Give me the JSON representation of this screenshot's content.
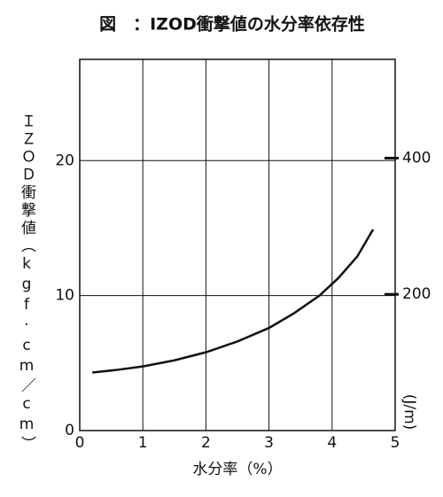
{
  "chart_data": {
    "type": "line",
    "title": "図　：IZOD衝撃値の水分率依存性",
    "x_label": "水分率（%）",
    "y_label": "ＩＺＯＤ衝撃値（kgf·cm／cm）",
    "y2_label": "(J/m)",
    "xlim": [
      0,
      5
    ],
    "xticks": [
      0,
      1,
      2,
      3,
      4,
      5
    ],
    "ylim": [
      0,
      27.5
    ],
    "yticks": [
      0,
      10,
      20
    ],
    "y2lim": [
      0,
      545
    ],
    "y2ticks": [
      200,
      400
    ],
    "grid": true,
    "color": "#111111",
    "x": [
      0.2,
      0.6,
      1.0,
      1.5,
      2.0,
      2.5,
      3.0,
      3.4,
      3.8,
      4.1,
      4.4,
      4.65
    ],
    "values": [
      4.3,
      4.5,
      4.75,
      5.2,
      5.8,
      6.6,
      7.6,
      8.7,
      10.0,
      11.3,
      12.9,
      14.9
    ]
  }
}
